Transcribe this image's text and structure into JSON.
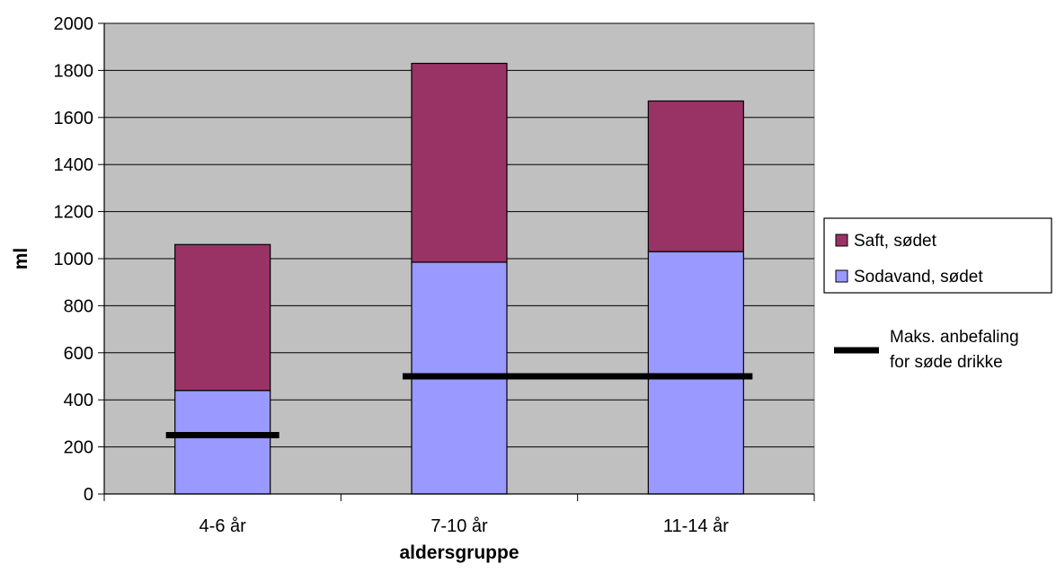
{
  "chart_data": {
    "type": "bar",
    "stacked": true,
    "categories": [
      "4-6 år",
      "7-10 år",
      "11-14 år"
    ],
    "series": [
      {
        "name": "Sodavand, sødet",
        "values": [
          440,
          985,
          1030
        ],
        "color": "#9999ff"
      },
      {
        "name": "Saft, sødet",
        "values": [
          620,
          845,
          640
        ],
        "color": "#993366"
      }
    ],
    "reference_lines": [
      {
        "name": "Maks. anbefaling for søde drikke",
        "name_lines": [
          "Maks. anbefaling",
          "for søde drikke"
        ],
        "segments": [
          {
            "categories": [
              "4-6 år"
            ],
            "value": 250
          },
          {
            "categories": [
              "7-10 år",
              "11-14 år"
            ],
            "value": 500
          }
        ],
        "color": "#000000"
      }
    ],
    "xlabel": "aldersgruppe",
    "ylabel": "ml",
    "ylim": [
      0,
      2000
    ],
    "yticks": [
      0,
      200,
      400,
      600,
      800,
      1000,
      1200,
      1400,
      1600,
      1800,
      2000
    ],
    "grid": true,
    "plot_background": "#c0c0c0",
    "legend_position": "right"
  }
}
